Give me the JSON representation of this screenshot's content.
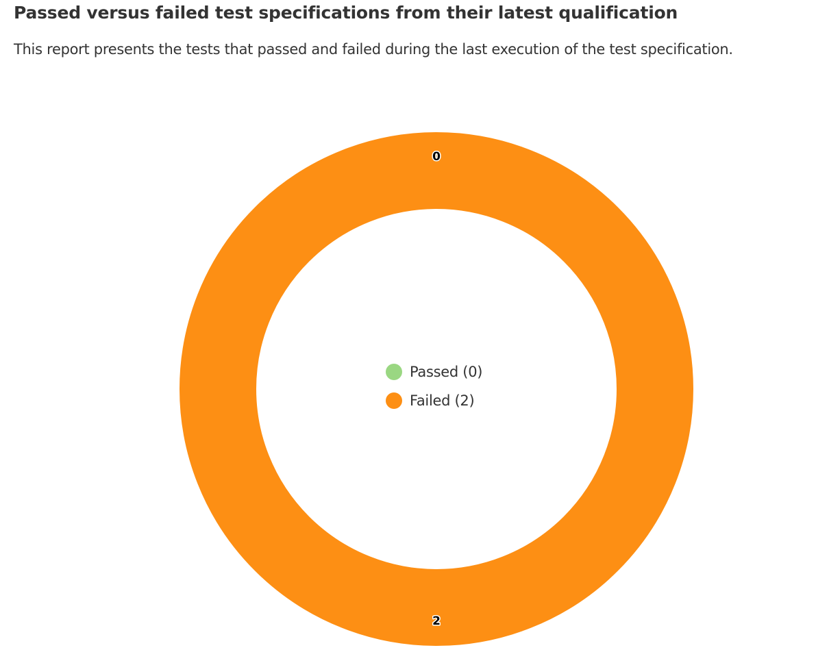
{
  "report": {
    "title": "Passed versus failed test specifications from their latest qualification",
    "description": "This report presents the tests that passed and failed during the last execution of the test specification."
  },
  "chart_data": {
    "type": "pie",
    "variant": "donut",
    "categories": [
      "Passed",
      "Failed"
    ],
    "values": [
      0,
      2
    ],
    "colors": [
      "#9ad782",
      "#fd8f14"
    ],
    "data_labels": [
      "0",
      "2"
    ],
    "legend": {
      "placement": "center",
      "entries": [
        "Passed (0)",
        "Failed (2)"
      ]
    }
  }
}
